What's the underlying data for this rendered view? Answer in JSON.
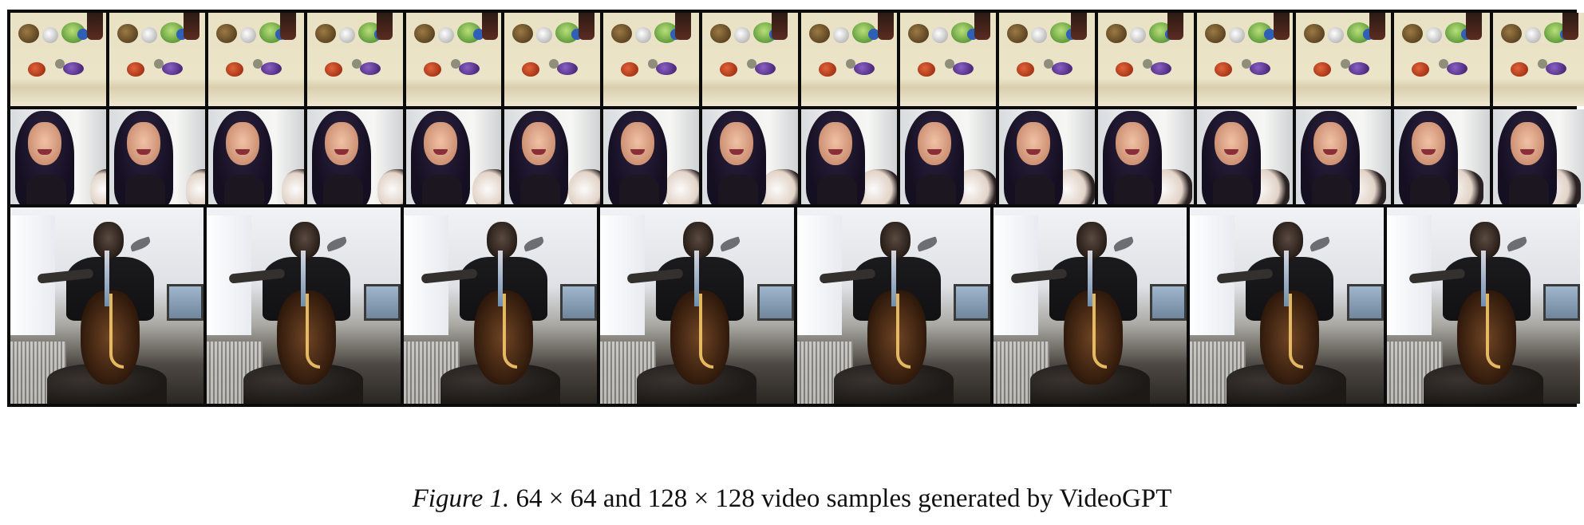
{
  "figure": {
    "caption_label": "Figure 1.",
    "caption_text": " 64 × 64 and 128 × 128 video samples generated by VideoGPT",
    "rows": [
      {
        "name": "toys",
        "frames": 16,
        "resolution": "64 × 64"
      },
      {
        "name": "face",
        "frames": 16,
        "resolution": "64 × 64"
      },
      {
        "name": "cello",
        "frames": 8,
        "resolution": "128 × 128"
      }
    ]
  }
}
